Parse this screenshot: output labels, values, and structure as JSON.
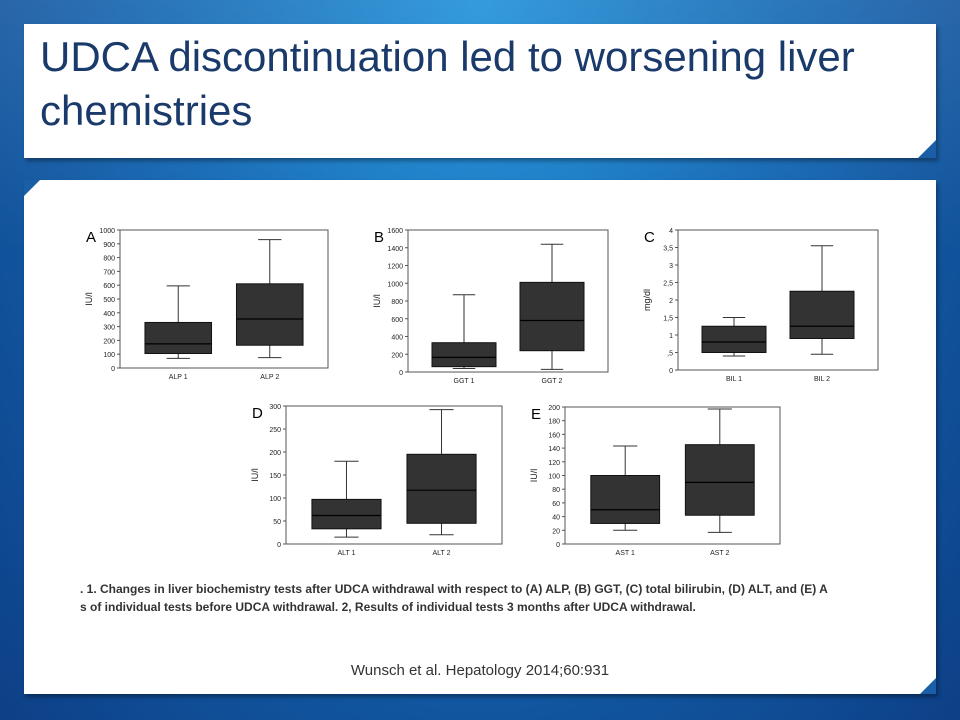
{
  "slide": {
    "title": "UDCA discontinuation led to worsening liver chemistries",
    "caption_line1": ". 1. Changes in liver biochemistry tests after UDCA withdrawal with respect to (A) ALP, (B) GGT, (C) total bilirubin, (D) ALT, and (E) A",
    "caption_line2": "s of individual tests before UDCA withdrawal. 2, Results of individual tests 3 months after UDCA withdrawal.",
    "citation": "Wunsch et al. Hepatology 2014;60:931"
  },
  "colors": {
    "box_fill": "#333333",
    "title_text": "#1a3a6b",
    "accent": "#1a5ea8"
  },
  "chart_data": [
    {
      "type": "box",
      "panel": "A",
      "ylabel": "IU/l",
      "ylim": [
        0,
        1000
      ],
      "yticks": [
        "0",
        "100",
        "200",
        "300",
        "400",
        "500",
        "600",
        "700",
        "800",
        "900",
        "1000"
      ],
      "categories": [
        "ALP 1",
        "ALP 2"
      ],
      "boxes": [
        {
          "min": 70,
          "q1": 105,
          "median": 175,
          "q3": 330,
          "max": 595
        },
        {
          "min": 75,
          "q1": 165,
          "median": 355,
          "q3": 610,
          "max": 930
        }
      ]
    },
    {
      "type": "box",
      "panel": "B",
      "ylabel": "IU/l",
      "ylim": [
        0,
        1600
      ],
      "yticks": [
        "0",
        "200",
        "400",
        "600",
        "800",
        "1000",
        "1200",
        "1400",
        "1600"
      ],
      "categories": [
        "GGT 1",
        "GGT 2"
      ],
      "boxes": [
        {
          "min": 40,
          "q1": 60,
          "median": 165,
          "q3": 330,
          "max": 870
        },
        {
          "min": 30,
          "q1": 240,
          "median": 580,
          "q3": 1010,
          "max": 1440
        }
      ]
    },
    {
      "type": "box",
      "panel": "C",
      "ylabel": "mg/dl",
      "ylim": [
        0,
        4
      ],
      "yticks": [
        "0",
        ",5",
        "1",
        "1,5",
        "2",
        "2,5",
        "3",
        "3,5",
        "4"
      ],
      "categories": [
        "BIL 1",
        "BIL 2"
      ],
      "boxes": [
        {
          "min": 0.4,
          "q1": 0.5,
          "median": 0.8,
          "q3": 1.25,
          "max": 1.5
        },
        {
          "min": 0.45,
          "q1": 0.9,
          "median": 1.25,
          "q3": 2.25,
          "max": 3.55
        }
      ]
    },
    {
      "type": "box",
      "panel": "D",
      "ylabel": "IU/l",
      "ylim": [
        0,
        300
      ],
      "yticks": [
        "0",
        "50",
        "100",
        "150",
        "200",
        "250",
        "300"
      ],
      "categories": [
        "ALT 1",
        "ALT 2"
      ],
      "boxes": [
        {
          "min": 15,
          "q1": 33,
          "median": 62,
          "q3": 97,
          "max": 180
        },
        {
          "min": 20,
          "q1": 45,
          "median": 117,
          "q3": 195,
          "max": 292
        }
      ]
    },
    {
      "type": "box",
      "panel": "E",
      "ylabel": "IU/l",
      "ylim": [
        0,
        200
      ],
      "yticks": [
        "0",
        "20",
        "40",
        "60",
        "80",
        "100",
        "120",
        "140",
        "160",
        "180",
        "200"
      ],
      "categories": [
        "AST 1",
        "AST 2"
      ],
      "boxes": [
        {
          "min": 20,
          "q1": 30,
          "median": 50,
          "q3": 100,
          "max": 143
        },
        {
          "min": 17,
          "q1": 42,
          "median": 90,
          "q3": 145,
          "max": 197
        }
      ]
    }
  ]
}
